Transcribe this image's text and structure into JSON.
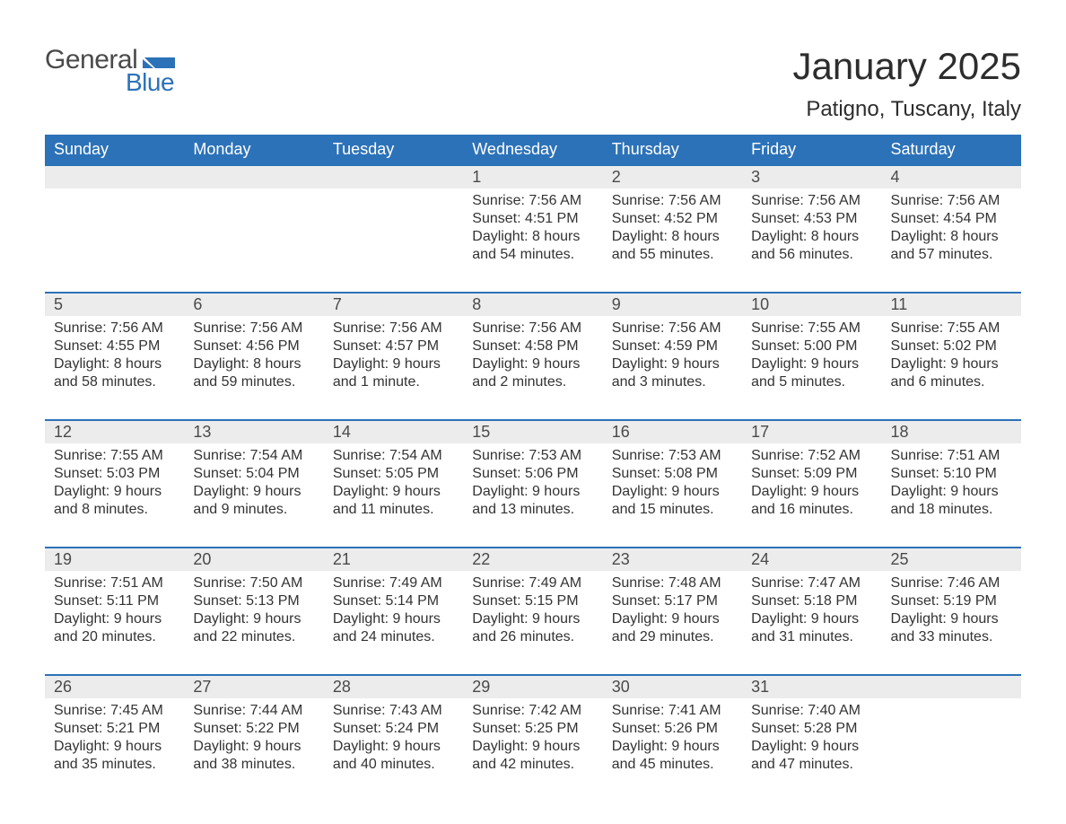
{
  "logo": {
    "text_general": "General",
    "text_blue": "Blue",
    "brand_color": "#2c72b8",
    "gray": "#4a4a4a"
  },
  "header": {
    "month_title": "January 2025",
    "location": "Patigno, Tuscany, Italy"
  },
  "calendar": {
    "columns": [
      "Sunday",
      "Monday",
      "Tuesday",
      "Wednesday",
      "Thursday",
      "Friday",
      "Saturday"
    ],
    "header_bg": "#2c72b8",
    "header_fg": "#ffffff",
    "daynum_bg": "#ececec",
    "daynum_border": "#2c72b8",
    "text_color": "#333333",
    "weeks": [
      [
        {
          "n": "",
          "lines": []
        },
        {
          "n": "",
          "lines": []
        },
        {
          "n": "",
          "lines": []
        },
        {
          "n": "1",
          "lines": [
            "Sunrise: 7:56 AM",
            "Sunset: 4:51 PM",
            "Daylight: 8 hours and 54 minutes."
          ]
        },
        {
          "n": "2",
          "lines": [
            "Sunrise: 7:56 AM",
            "Sunset: 4:52 PM",
            "Daylight: 8 hours and 55 minutes."
          ]
        },
        {
          "n": "3",
          "lines": [
            "Sunrise: 7:56 AM",
            "Sunset: 4:53 PM",
            "Daylight: 8 hours and 56 minutes."
          ]
        },
        {
          "n": "4",
          "lines": [
            "Sunrise: 7:56 AM",
            "Sunset: 4:54 PM",
            "Daylight: 8 hours and 57 minutes."
          ]
        }
      ],
      [
        {
          "n": "5",
          "lines": [
            "Sunrise: 7:56 AM",
            "Sunset: 4:55 PM",
            "Daylight: 8 hours and 58 minutes."
          ]
        },
        {
          "n": "6",
          "lines": [
            "Sunrise: 7:56 AM",
            "Sunset: 4:56 PM",
            "Daylight: 8 hours and 59 minutes."
          ]
        },
        {
          "n": "7",
          "lines": [
            "Sunrise: 7:56 AM",
            "Sunset: 4:57 PM",
            "Daylight: 9 hours and 1 minute."
          ]
        },
        {
          "n": "8",
          "lines": [
            "Sunrise: 7:56 AM",
            "Sunset: 4:58 PM",
            "Daylight: 9 hours and 2 minutes."
          ]
        },
        {
          "n": "9",
          "lines": [
            "Sunrise: 7:56 AM",
            "Sunset: 4:59 PM",
            "Daylight: 9 hours and 3 minutes."
          ]
        },
        {
          "n": "10",
          "lines": [
            "Sunrise: 7:55 AM",
            "Sunset: 5:00 PM",
            "Daylight: 9 hours and 5 minutes."
          ]
        },
        {
          "n": "11",
          "lines": [
            "Sunrise: 7:55 AM",
            "Sunset: 5:02 PM",
            "Daylight: 9 hours and 6 minutes."
          ]
        }
      ],
      [
        {
          "n": "12",
          "lines": [
            "Sunrise: 7:55 AM",
            "Sunset: 5:03 PM",
            "Daylight: 9 hours and 8 minutes."
          ]
        },
        {
          "n": "13",
          "lines": [
            "Sunrise: 7:54 AM",
            "Sunset: 5:04 PM",
            "Daylight: 9 hours and 9 minutes."
          ]
        },
        {
          "n": "14",
          "lines": [
            "Sunrise: 7:54 AM",
            "Sunset: 5:05 PM",
            "Daylight: 9 hours and 11 minutes."
          ]
        },
        {
          "n": "15",
          "lines": [
            "Sunrise: 7:53 AM",
            "Sunset: 5:06 PM",
            "Daylight: 9 hours and 13 minutes."
          ]
        },
        {
          "n": "16",
          "lines": [
            "Sunrise: 7:53 AM",
            "Sunset: 5:08 PM",
            "Daylight: 9 hours and 15 minutes."
          ]
        },
        {
          "n": "17",
          "lines": [
            "Sunrise: 7:52 AM",
            "Sunset: 5:09 PM",
            "Daylight: 9 hours and 16 minutes."
          ]
        },
        {
          "n": "18",
          "lines": [
            "Sunrise: 7:51 AM",
            "Sunset: 5:10 PM",
            "Daylight: 9 hours and 18 minutes."
          ]
        }
      ],
      [
        {
          "n": "19",
          "lines": [
            "Sunrise: 7:51 AM",
            "Sunset: 5:11 PM",
            "Daylight: 9 hours and 20 minutes."
          ]
        },
        {
          "n": "20",
          "lines": [
            "Sunrise: 7:50 AM",
            "Sunset: 5:13 PM",
            "Daylight: 9 hours and 22 minutes."
          ]
        },
        {
          "n": "21",
          "lines": [
            "Sunrise: 7:49 AM",
            "Sunset: 5:14 PM",
            "Daylight: 9 hours and 24 minutes."
          ]
        },
        {
          "n": "22",
          "lines": [
            "Sunrise: 7:49 AM",
            "Sunset: 5:15 PM",
            "Daylight: 9 hours and 26 minutes."
          ]
        },
        {
          "n": "23",
          "lines": [
            "Sunrise: 7:48 AM",
            "Sunset: 5:17 PM",
            "Daylight: 9 hours and 29 minutes."
          ]
        },
        {
          "n": "24",
          "lines": [
            "Sunrise: 7:47 AM",
            "Sunset: 5:18 PM",
            "Daylight: 9 hours and 31 minutes."
          ]
        },
        {
          "n": "25",
          "lines": [
            "Sunrise: 7:46 AM",
            "Sunset: 5:19 PM",
            "Daylight: 9 hours and 33 minutes."
          ]
        }
      ],
      [
        {
          "n": "26",
          "lines": [
            "Sunrise: 7:45 AM",
            "Sunset: 5:21 PM",
            "Daylight: 9 hours and 35 minutes."
          ]
        },
        {
          "n": "27",
          "lines": [
            "Sunrise: 7:44 AM",
            "Sunset: 5:22 PM",
            "Daylight: 9 hours and 38 minutes."
          ]
        },
        {
          "n": "28",
          "lines": [
            "Sunrise: 7:43 AM",
            "Sunset: 5:24 PM",
            "Daylight: 9 hours and 40 minutes."
          ]
        },
        {
          "n": "29",
          "lines": [
            "Sunrise: 7:42 AM",
            "Sunset: 5:25 PM",
            "Daylight: 9 hours and 42 minutes."
          ]
        },
        {
          "n": "30",
          "lines": [
            "Sunrise: 7:41 AM",
            "Sunset: 5:26 PM",
            "Daylight: 9 hours and 45 minutes."
          ]
        },
        {
          "n": "31",
          "lines": [
            "Sunrise: 7:40 AM",
            "Sunset: 5:28 PM",
            "Daylight: 9 hours and 47 minutes."
          ]
        },
        {
          "n": "",
          "lines": []
        }
      ]
    ]
  }
}
